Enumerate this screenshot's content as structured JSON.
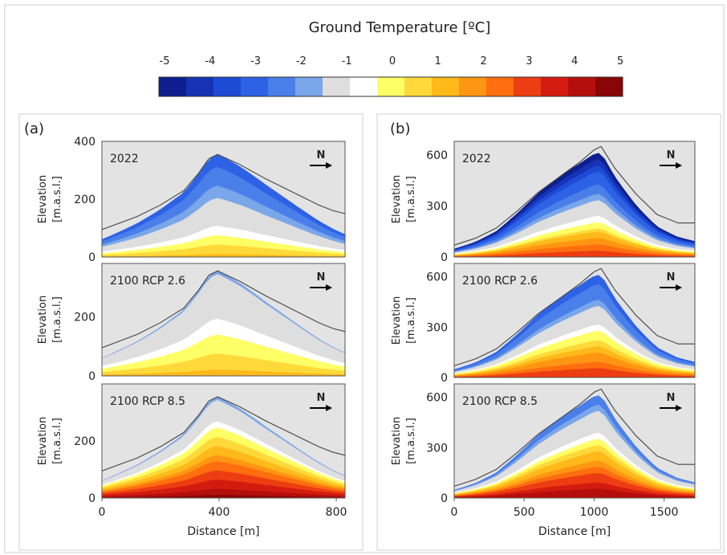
{
  "colorbar": {
    "title": "Ground Temperature [ºC]",
    "ticks": [
      "-5",
      "-4",
      "-3",
      "-2",
      "-1",
      "0",
      "1",
      "2",
      "3",
      "4",
      "5"
    ],
    "colors": [
      "#0d1f8e",
      "#1633b5",
      "#1d4bd6",
      "#2e62e6",
      "#4a7fea",
      "#7aa6ea",
      "#dedede",
      "#ffffff",
      "#ffff66",
      "#ffd93a",
      "#ffb91a",
      "#ff9613",
      "#ff6e0f",
      "#ed3d12",
      "#d41b10",
      "#b50f0c",
      "#8a0505"
    ]
  },
  "chart_data": [
    {
      "panel": "(a)",
      "type": "contour",
      "xlabel": "Distance [m]",
      "ylabel": "Elevation",
      "ylabel2": "[m.a.s.l.]",
      "xlim": [
        0,
        830
      ],
      "xticks": [
        "0",
        "400",
        "800"
      ],
      "scenarios": [
        {
          "label": "2022",
          "ylim": [
            0,
            400
          ],
          "yticks": [
            "0",
            "200",
            "400"
          ],
          "surface_x": [
            0,
            120,
            200,
            280,
            330,
            365,
            395,
            470,
            560,
            650,
            740,
            790,
            830
          ],
          "surface_y": [
            95,
            140,
            180,
            230,
            290,
            340,
            355,
            320,
            270,
            225,
            180,
            160,
            150
          ],
          "temp_range": [
            -3,
            2
          ]
        },
        {
          "label": "2100 RCP 2.6",
          "ylim": [
            0,
            380
          ],
          "yticks": [
            "0",
            "200"
          ],
          "surface_x": [
            0,
            120,
            200,
            280,
            330,
            365,
            395,
            470,
            560,
            650,
            740,
            790,
            830
          ],
          "surface_y": [
            95,
            140,
            180,
            230,
            290,
            340,
            355,
            320,
            270,
            225,
            180,
            160,
            150
          ],
          "temp_range": [
            -1,
            2
          ]
        },
        {
          "label": "2100 RCP 8.5",
          "ylim": [
            0,
            400
          ],
          "yticks": [
            "0",
            "200"
          ],
          "surface_x": [
            0,
            120,
            200,
            280,
            330,
            365,
            395,
            470,
            560,
            650,
            740,
            790,
            830
          ],
          "surface_y": [
            95,
            140,
            180,
            230,
            290,
            340,
            355,
            320,
            270,
            225,
            180,
            160,
            150
          ],
          "temp_range": [
            -1,
            5
          ]
        }
      ]
    },
    {
      "panel": "(b)",
      "type": "contour",
      "xlabel": "Distance [m]",
      "ylabel": "Elevation",
      "ylabel2": "[m.a.s.l.]",
      "xlim": [
        0,
        1720
      ],
      "xticks": [
        "0",
        "500",
        "1000",
        "1500"
      ],
      "scenarios": [
        {
          "label": "2022",
          "ylim": [
            0,
            680
          ],
          "yticks": [
            "0",
            "300",
            "600"
          ],
          "surface_x": [
            0,
            150,
            300,
            450,
            600,
            750,
            900,
            1000,
            1050,
            1150,
            1300,
            1450,
            1600,
            1720
          ],
          "surface_y": [
            70,
            110,
            170,
            270,
            380,
            470,
            560,
            630,
            650,
            520,
            370,
            250,
            200,
            200
          ],
          "temp_range": [
            -5,
            4
          ]
        },
        {
          "label": "2100 RCP 2.6",
          "ylim": [
            0,
            680
          ],
          "yticks": [
            "0",
            "300",
            "600"
          ],
          "surface_x": [
            0,
            150,
            300,
            450,
            600,
            750,
            900,
            1000,
            1050,
            1150,
            1300,
            1450,
            1600,
            1720
          ],
          "surface_y": [
            70,
            110,
            170,
            270,
            380,
            470,
            560,
            630,
            650,
            520,
            370,
            250,
            200,
            200
          ],
          "temp_range": [
            -3,
            4
          ]
        },
        {
          "label": "2100 RCP 8.5",
          "ylim": [
            0,
            680
          ],
          "yticks": [
            "0",
            "300",
            "600"
          ],
          "surface_x": [
            0,
            150,
            300,
            450,
            600,
            750,
            900,
            1000,
            1050,
            1150,
            1300,
            1450,
            1600,
            1720
          ],
          "surface_y": [
            70,
            110,
            170,
            270,
            380,
            470,
            560,
            630,
            650,
            520,
            370,
            250,
            200,
            200
          ],
          "temp_range": [
            -2,
            5
          ]
        }
      ]
    }
  ],
  "north_label": "N"
}
